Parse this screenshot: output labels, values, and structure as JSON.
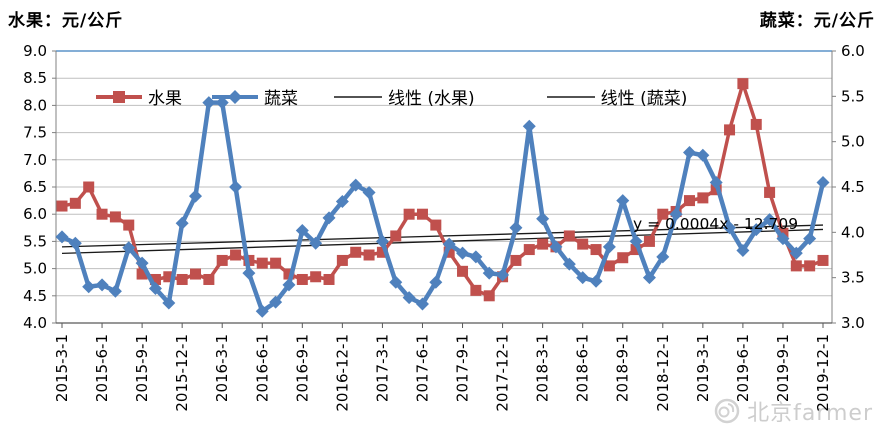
{
  "page": {
    "title_left": "水果：元/公斤",
    "title_right": "蔬菜：元/公斤"
  },
  "watermark": {
    "text": "北京farmer",
    "icon": "weibo-swirl-icon"
  },
  "chart_data": {
    "type": "line",
    "title": "",
    "categories": [
      "2015-3-1",
      "2015-4-1",
      "2015-5-1",
      "2015-6-1",
      "2015-7-1",
      "2015-8-1",
      "2015-9-1",
      "2015-10-1",
      "2015-11-1",
      "2015-12-1",
      "2016-1-1",
      "2016-2-1",
      "2016-3-1",
      "2016-4-1",
      "2016-5-1",
      "2016-6-1",
      "2016-7-1",
      "2016-8-1",
      "2016-9-1",
      "2016-10-1",
      "2016-11-1",
      "2016-12-1",
      "2017-1-1",
      "2017-2-1",
      "2017-3-1",
      "2017-4-1",
      "2017-5-1",
      "2017-6-1",
      "2017-7-1",
      "2017-8-1",
      "2017-9-1",
      "2017-10-1",
      "2017-11-1",
      "2017-12-1",
      "2018-1-1",
      "2018-2-1",
      "2018-3-1",
      "2018-4-1",
      "2018-5-1",
      "2018-6-1",
      "2018-7-1",
      "2018-8-1",
      "2018-9-1",
      "2018-10-1",
      "2018-11-1",
      "2018-12-1",
      "2019-1-1",
      "2019-2-1",
      "2019-3-1",
      "2019-4-1",
      "2019-5-1",
      "2019-6-1",
      "2019-7-1",
      "2019-8-1",
      "2019-9-1",
      "2019-10-1",
      "2019-11-1",
      "2019-12-1"
    ],
    "series": [
      {
        "name": "水果",
        "axis": "left",
        "color": "#C0504D",
        "marker": "square",
        "values": [
          6.15,
          6.2,
          6.5,
          6.0,
          5.95,
          5.8,
          4.9,
          4.8,
          4.85,
          4.8,
          4.9,
          4.8,
          5.15,
          5.25,
          5.15,
          5.1,
          5.1,
          4.9,
          4.8,
          4.85,
          4.8,
          5.15,
          5.3,
          5.25,
          5.3,
          5.6,
          6.0,
          6.0,
          5.8,
          5.3,
          4.95,
          4.6,
          4.5,
          4.85,
          5.15,
          5.35,
          5.45,
          5.4,
          5.6,
          5.45,
          5.35,
          5.05,
          5.2,
          5.35,
          5.5,
          6.0,
          6.05,
          6.25,
          6.3,
          6.45,
          7.55,
          8.4,
          7.65,
          6.4,
          5.65,
          5.05,
          5.05,
          5.15
        ]
      },
      {
        "name": "蔬菜",
        "axis": "right",
        "color": "#4F81BD",
        "marker": "diamond",
        "values": [
          3.95,
          3.88,
          3.4,
          3.42,
          3.35,
          3.83,
          3.66,
          3.38,
          3.22,
          4.1,
          4.4,
          5.43,
          5.43,
          4.5,
          3.55,
          3.13,
          3.23,
          3.42,
          4.02,
          3.88,
          4.16,
          4.34,
          4.52,
          4.44,
          3.9,
          3.45,
          3.28,
          3.21,
          3.45,
          3.87,
          3.77,
          3.73,
          3.55,
          3.53,
          4.05,
          5.17,
          4.15,
          3.84,
          3.65,
          3.5,
          3.46,
          3.84,
          4.35,
          3.9,
          3.5,
          3.73,
          4.2,
          4.88,
          4.85,
          4.55,
          4.05,
          3.8,
          4.03,
          4.14,
          3.93,
          3.77,
          3.93,
          4.55
        ]
      }
    ],
    "trendlines": [
      {
        "name": "线性 (水果)",
        "axis": "left",
        "start": 5.28,
        "end": 5.72,
        "color": "#1a1a1a"
      },
      {
        "name": "线性 (蔬菜)",
        "axis": "right",
        "start": 3.84,
        "end": 4.08,
        "color": "#1a1a1a"
      }
    ],
    "equation_label": "y = 0.0004x - 12.709",
    "left_axis": {
      "min": 4.0,
      "max": 9.0,
      "step": 0.5,
      "ticks": [
        "9.0",
        "8.5",
        "8.0",
        "7.5",
        "7.0",
        "6.5",
        "6.0",
        "5.5",
        "5.0",
        "4.5",
        "4.0"
      ]
    },
    "right_axis": {
      "min": 3.0,
      "max": 6.0,
      "step": 0.5,
      "ticks": [
        "6.0",
        "5.5",
        "5.0",
        "4.5",
        "4.0",
        "3.5",
        "3.0"
      ]
    },
    "x_axis": {
      "label_every": 3,
      "visible_labels": [
        "2015-3-1",
        "2015-6-1",
        "2015-9-1",
        "2015-12-1",
        "2016-3-1",
        "2016-6-1",
        "2016-9-1",
        "2016-12-1",
        "2017-3-1",
        "2017-6-1",
        "2017-9-1",
        "2017-12-1",
        "2018-3-1",
        "2018-6-1",
        "2018-9-1",
        "2018-12-1",
        "2019-3-1",
        "2019-6-1",
        "2019-9-1",
        "2019-12-1"
      ]
    },
    "legend": [
      {
        "label": "水果"
      },
      {
        "label": "蔬菜"
      },
      {
        "label": "线性 (水果)"
      },
      {
        "label": "线性 (蔬菜)"
      }
    ],
    "gridlines": true,
    "legend_position": "top"
  }
}
